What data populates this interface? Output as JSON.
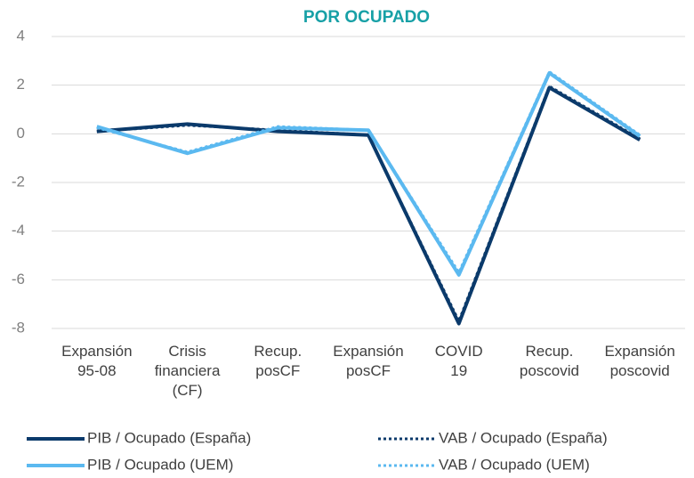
{
  "chart_data": {
    "type": "line",
    "title": "POR OCUPADO",
    "categories": [
      "Expansión\n95-08",
      "Crisis\nfinanciera\n(CF)",
      "Recup.\nposCF",
      "Expansión\nposCF",
      "COVID\n19",
      "Recup.\nposcovid",
      "Expansión\nposcovid"
    ],
    "series": [
      {
        "name": "PIB / Ocupado (España)",
        "color": "#0b3a6b",
        "style": "solid",
        "values": [
          0.1,
          0.4,
          0.1,
          -0.05,
          -7.8,
          1.9,
          -0.25
        ]
      },
      {
        "name": "VAB / Ocupado (España)",
        "color": "#0b3a6b",
        "style": "dotted",
        "values": [
          0.1,
          0.35,
          0.15,
          -0.05,
          -7.7,
          1.95,
          -0.2
        ]
      },
      {
        "name": "PIB / Ocupado (UEM)",
        "color": "#5bb9f0",
        "style": "solid",
        "values": [
          0.3,
          -0.8,
          0.25,
          0.15,
          -5.8,
          2.5,
          -0.1
        ]
      },
      {
        "name": "VAB / Ocupado (UEM)",
        "color": "#5bb9f0",
        "style": "dotted",
        "values": [
          0.25,
          -0.75,
          0.3,
          0.15,
          -5.7,
          2.55,
          -0.05
        ]
      }
    ],
    "ylim": [
      -8,
      4
    ],
    "yticks": [
      4,
      2,
      0,
      -2,
      -4,
      -6,
      -8
    ],
    "grid": true
  }
}
